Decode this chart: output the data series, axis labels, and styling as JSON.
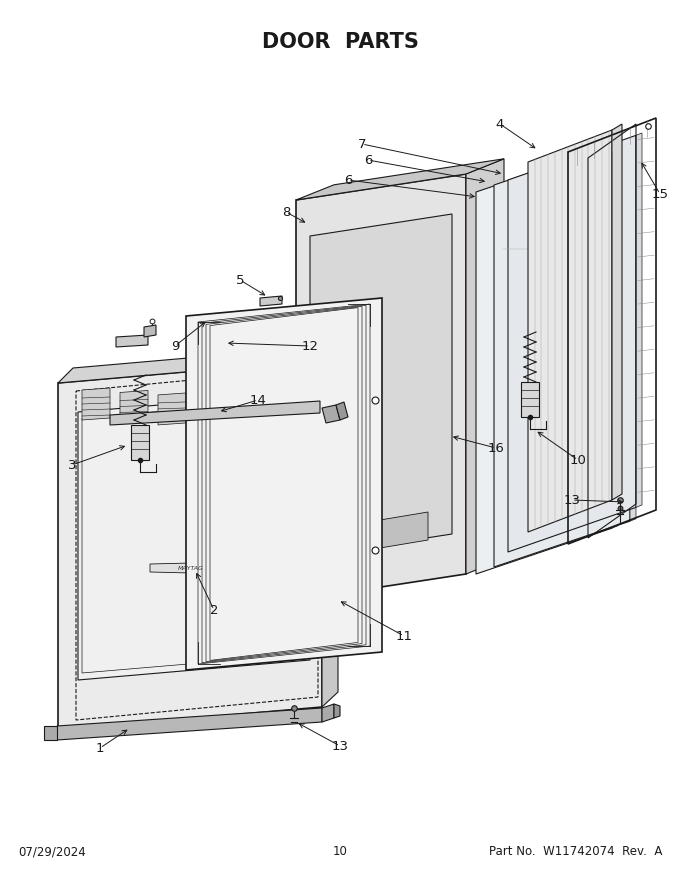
{
  "title": "DOOR  PARTS",
  "title_fontsize": 15,
  "title_fontweight": "bold",
  "footer_left": "07/29/2024",
  "footer_center": "10",
  "footer_right": "Part No.  W11742074  Rev.  A",
  "footer_fontsize": 8.5,
  "bg_color": "#ffffff",
  "line_color": "#1a1a1a",
  "label_fontsize": 9.5
}
